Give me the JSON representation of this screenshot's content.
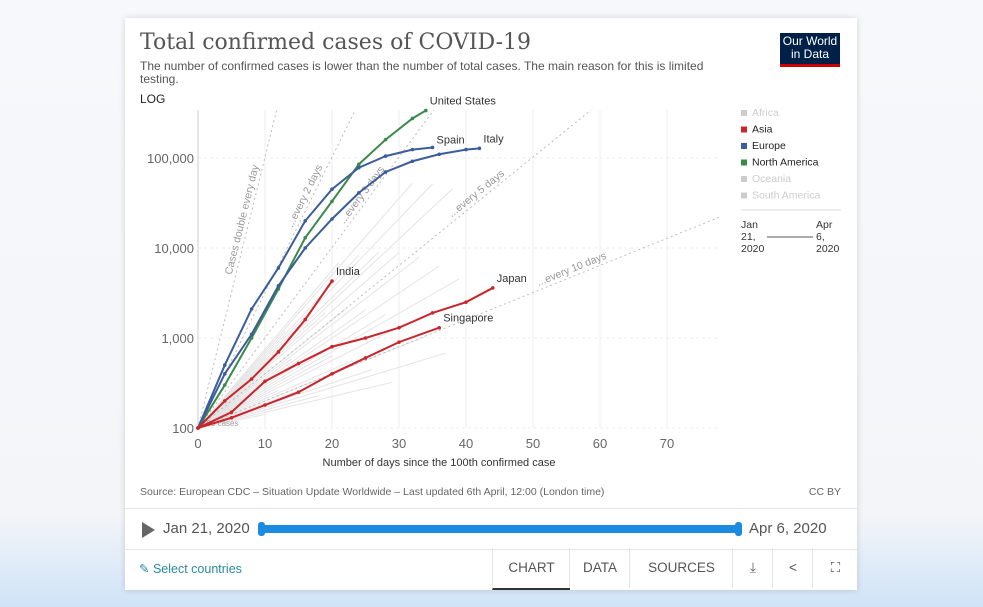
{
  "header": {
    "title": "Total confirmed cases of COVID-19",
    "subtitle": "The number of confirmed cases is lower than the number of total cases. The main reason for this is limited testing.",
    "scale": "LOG",
    "logo": "Our World in Data"
  },
  "chart_data": {
    "type": "line",
    "xlabel": "Number of days since the 100th confirmed case",
    "ylabel": "",
    "xlim": [
      0,
      78
    ],
    "ylim": [
      100,
      340000
    ],
    "yscale": "log",
    "xticks": [
      "0",
      "10",
      "20",
      "30",
      "40",
      "50",
      "60",
      "70"
    ],
    "yticks": [
      "100",
      "1,000",
      "10,000",
      "100,000"
    ],
    "start_label": "100 cases",
    "doubling_lines": [
      {
        "label": "Cases double every day",
        "days": 1
      },
      {
        "label": "...every 2 days",
        "days": 2
      },
      {
        "label": "...every 3 days",
        "days": 3
      },
      {
        "label": "...every 5 days",
        "days": 5
      },
      {
        "label": "...every 10 days",
        "days": 10
      }
    ],
    "series": [
      {
        "name": "United States",
        "region": "North America",
        "color": "#3a8a4a",
        "points": [
          [
            0,
            100
          ],
          [
            4,
            300
          ],
          [
            8,
            1000
          ],
          [
            12,
            3500
          ],
          [
            16,
            13000
          ],
          [
            20,
            33000
          ],
          [
            24,
            85000
          ],
          [
            28,
            160000
          ],
          [
            32,
            275000
          ],
          [
            34,
            337000
          ]
        ]
      },
      {
        "name": "Spain",
        "region": "Europe",
        "color": "#3b5d9b",
        "points": [
          [
            0,
            100
          ],
          [
            4,
            500
          ],
          [
            8,
            2100
          ],
          [
            12,
            6000
          ],
          [
            16,
            20000
          ],
          [
            20,
            45000
          ],
          [
            24,
            78000
          ],
          [
            28,
            105000
          ],
          [
            32,
            124000
          ],
          [
            35,
            131000
          ]
        ]
      },
      {
        "name": "Italy",
        "region": "Europe",
        "color": "#3b5d9b",
        "points": [
          [
            0,
            100
          ],
          [
            4,
            400
          ],
          [
            8,
            1100
          ],
          [
            12,
            3800
          ],
          [
            16,
            10000
          ],
          [
            20,
            21000
          ],
          [
            24,
            41000
          ],
          [
            28,
            70000
          ],
          [
            32,
            92000
          ],
          [
            36,
            110000
          ],
          [
            40,
            124000
          ],
          [
            42,
            128000
          ]
        ]
      },
      {
        "name": "India",
        "region": "Asia",
        "color": "#c8252c",
        "points": [
          [
            0,
            100
          ],
          [
            4,
            200
          ],
          [
            8,
            350
          ],
          [
            12,
            700
          ],
          [
            16,
            1600
          ],
          [
            20,
            4300
          ]
        ]
      },
      {
        "name": "Japan",
        "region": "Asia",
        "color": "#c8252c",
        "points": [
          [
            0,
            100
          ],
          [
            5,
            150
          ],
          [
            10,
            330
          ],
          [
            15,
            520
          ],
          [
            20,
            800
          ],
          [
            25,
            1000
          ],
          [
            30,
            1300
          ],
          [
            35,
            1900
          ],
          [
            40,
            2500
          ],
          [
            44,
            3600
          ]
        ]
      },
      {
        "name": "Singapore",
        "region": "Asia",
        "color": "#c8252c",
        "points": [
          [
            0,
            100
          ],
          [
            5,
            130
          ],
          [
            10,
            180
          ],
          [
            15,
            250
          ],
          [
            20,
            400
          ],
          [
            25,
            600
          ],
          [
            30,
            900
          ],
          [
            36,
            1300
          ]
        ]
      }
    ],
    "legend": {
      "placement": "right",
      "items": [
        {
          "label": "Africa",
          "color": "#cccccc",
          "active": false
        },
        {
          "label": "Asia",
          "color": "#c8252c",
          "active": true
        },
        {
          "label": "Europe",
          "color": "#3b5d9b",
          "active": true
        },
        {
          "label": "North America",
          "color": "#3a8a4a",
          "active": true
        },
        {
          "label": "Oceania",
          "color": "#cccccc",
          "active": false
        },
        {
          "label": "South America",
          "color": "#cccccc",
          "active": false
        }
      ]
    },
    "time_legend": {
      "start": "Jan 21, 2020",
      "end": "Apr 6, 2020"
    }
  },
  "footer": {
    "source": "Source: European CDC – Situation Update Worldwide – Last updated 6th April, 12:00 (London time)",
    "license": "CC BY"
  },
  "timeline": {
    "start": "Jan 21, 2020",
    "end": "Apr 6, 2020",
    "range": [
      0,
      1
    ]
  },
  "controls": {
    "select": "Select countries",
    "tabs": [
      "CHART",
      "DATA",
      "SOURCES"
    ],
    "active": "CHART"
  }
}
